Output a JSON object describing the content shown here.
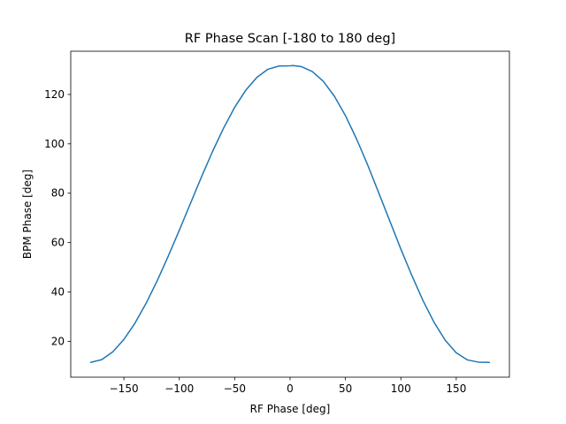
{
  "chart_data": {
    "type": "line",
    "title": "RF Phase Scan [-180 to 180 deg]",
    "xlabel": "RF Phase [deg]",
    "ylabel": "BPM Phase [deg]",
    "xlim": [
      -198,
      198
    ],
    "ylim": [
      5.5,
      137.5
    ],
    "xticks": [
      -150,
      -100,
      -50,
      0,
      50,
      100,
      150
    ],
    "xtick_labels": [
      "−150",
      "−100",
      "−50",
      "0",
      "50",
      "100",
      "150"
    ],
    "yticks": [
      20,
      40,
      60,
      80,
      100,
      120
    ],
    "ytick_labels": [
      "20",
      "40",
      "60",
      "80",
      "100",
      "120"
    ],
    "grid": false,
    "series": [
      {
        "color": "#1f77b4",
        "x": [
          -180,
          -170,
          -160,
          -150,
          -140,
          -130,
          -120,
          -110,
          -100,
          -90,
          -80,
          -70,
          -60,
          -50,
          -40,
          -30,
          -20,
          -10,
          0,
          3,
          10,
          20,
          30,
          40,
          50,
          60,
          70,
          80,
          90,
          100,
          110,
          120,
          130,
          140,
          150,
          160,
          170,
          180
        ],
        "values": [
          11.5,
          12.6,
          15.8,
          20.8,
          27.4,
          35.4,
          44.5,
          54.5,
          65.0,
          75.8,
          86.6,
          96.9,
          106.4,
          114.8,
          121.7,
          126.9,
          130.2,
          131.5,
          131.6,
          131.7,
          131.3,
          129.3,
          125.3,
          119.3,
          111.4,
          102.0,
          91.5,
          80.2,
          68.8,
          57.4,
          46.6,
          36.5,
          27.7,
          20.5,
          15.4,
          12.5,
          11.6,
          11.5
        ]
      }
    ]
  }
}
